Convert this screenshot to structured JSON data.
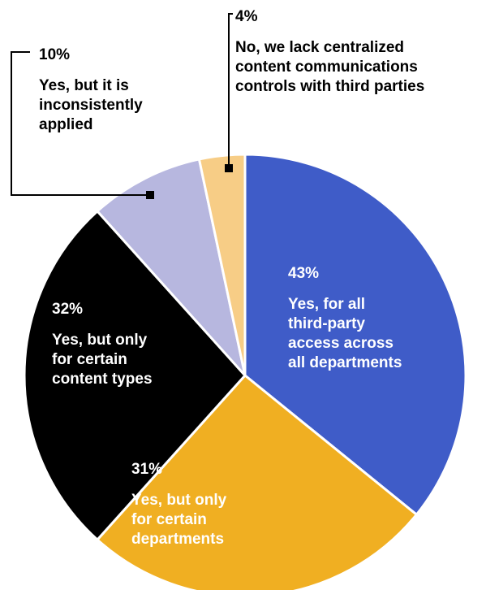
{
  "chart_data": {
    "type": "pie",
    "slices": [
      {
        "label": "Yes, for all third-party access across all departments",
        "value": 43,
        "value_label": "43%",
        "color": "#3F5CC8",
        "lines": [
          "Yes, for all",
          "third-party",
          "access across",
          "all departments"
        ],
        "text_color": "#ffffff"
      },
      {
        "label": "Yes, but only for certain departments",
        "value": 31,
        "value_label": "31%",
        "color": "#F0AF22",
        "lines": [
          "Yes, but only",
          "for certain",
          "departments"
        ],
        "text_color": "#ffffff"
      },
      {
        "label": "Yes, but only for certain content types",
        "value": 32,
        "value_label": "32%",
        "color": "#000000",
        "lines": [
          "Yes, but only",
          "for certain",
          "content types"
        ],
        "text_color": "#ffffff"
      },
      {
        "label": "Yes, but it is inconsistently applied",
        "value": 10,
        "value_label": "10%",
        "color": "#B7B7DF",
        "lines": [
          "Yes, but it is",
          "inconsistently",
          "applied"
        ],
        "text_color": "#000000"
      },
      {
        "label": "No, we lack centralized content communications controls with third parties",
        "value": 4,
        "value_label": "4%",
        "color": "#F7CD86",
        "lines": [
          "No, we lack centralized",
          "content communications",
          "controls with third parties"
        ],
        "text_color": "#000000"
      }
    ]
  }
}
